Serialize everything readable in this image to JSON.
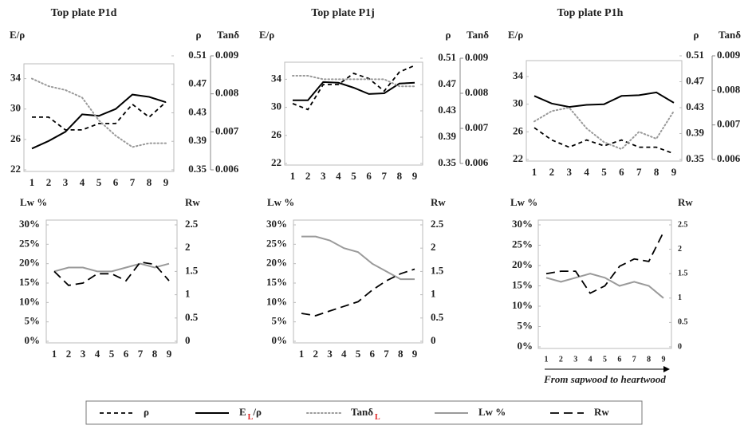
{
  "chart_data": [
    {
      "type": "line",
      "title": "Top plate P1d",
      "categories": [
        "1",
        "2",
        "3",
        "4",
        "5",
        "6",
        "7",
        "8",
        "9"
      ],
      "ylabel": "E/ρ",
      "ylim": [
        22,
        37
      ],
      "yticks": [
        22,
        26,
        30,
        34
      ],
      "y2label": "ρ",
      "y2lim": [
        0.35,
        0.51
      ],
      "y2ticks": [
        0.35,
        0.39,
        0.43,
        0.47,
        0.51
      ],
      "y3label": "Tanδ",
      "y3lim": [
        0.006,
        0.009
      ],
      "y3ticks": [
        0.006,
        0.007,
        0.008,
        0.009
      ],
      "series": [
        {
          "axis": "y2",
          "style": "dashed",
          "color": "#000000",
          "values": [
            0.424,
            0.424,
            0.406,
            0.406,
            0.415,
            0.415,
            0.442,
            0.424,
            0.445
          ]
        },
        {
          "axis": "y",
          "style": "solid",
          "color": "#000000",
          "values": [
            24.8,
            25.8,
            27,
            29.3,
            29.1,
            30,
            31.9,
            31.6,
            30.9
          ]
        },
        {
          "axis": "y3",
          "style": "dotted",
          "color": "#9a9a9a",
          "values": [
            0.0084,
            0.0082,
            0.0081,
            0.0079,
            0.0073,
            0.0069,
            0.0066,
            0.0067,
            0.0067
          ]
        }
      ]
    },
    {
      "type": "line",
      "title": "Top plate P1j",
      "categories": [
        "1",
        "2",
        "3",
        "4",
        "5",
        "6",
        "7",
        "8",
        "9"
      ],
      "ylabel": "E/ρ",
      "ylim": [
        22,
        37
      ],
      "yticks": [
        22,
        26,
        30,
        34
      ],
      "y2label": "ρ",
      "y2lim": [
        0.35,
        0.51
      ],
      "y2ticks": [
        0.35,
        0.39,
        0.43,
        0.47,
        0.51
      ],
      "y3label": "Tanδ",
      "y3lim": [
        0.006,
        0.009
      ],
      "y3ticks": [
        0.006,
        0.007,
        0.008,
        0.009
      ],
      "series": [
        {
          "axis": "y2",
          "style": "dashed",
          "color": "#000000",
          "values": [
            0.441,
            0.432,
            0.47,
            0.47,
            0.487,
            0.479,
            0.46,
            0.489,
            0.499
          ]
        },
        {
          "axis": "y",
          "style": "solid",
          "color": "#000000",
          "values": [
            31,
            31,
            33.6,
            33.5,
            32.8,
            31.9,
            32,
            33.4,
            33.5
          ]
        },
        {
          "axis": "y3",
          "style": "dotted",
          "color": "#9a9a9a",
          "values": [
            0.0085,
            0.0085,
            0.0084,
            0.0084,
            0.0084,
            0.0084,
            0.0084,
            0.0082,
            0.0082
          ]
        }
      ]
    },
    {
      "type": "line",
      "title": "Top plate P1h",
      "categories": [
        "1",
        "2",
        "3",
        "4",
        "5",
        "6",
        "7",
        "8",
        "9"
      ],
      "ylabel": "E/ρ",
      "ylim": [
        22,
        37
      ],
      "yticks": [
        22,
        26,
        30,
        34
      ],
      "y2label": "ρ",
      "y2lim": [
        0.35,
        0.51
      ],
      "y2ticks": [
        0.35,
        0.39,
        0.43,
        0.47,
        0.51
      ],
      "y3label": "Tanδ",
      "y3lim": [
        0.006,
        0.009
      ],
      "y3ticks": [
        0.006,
        0.007,
        0.008,
        0.009
      ],
      "series": [
        {
          "axis": "y2",
          "style": "dashed",
          "color": "#000000",
          "values": [
            0.399,
            0.38,
            0.369,
            0.38,
            0.371,
            0.38,
            0.369,
            0.369,
            0.359
          ]
        },
        {
          "axis": "y",
          "style": "solid",
          "color": "#000000",
          "values": [
            31.2,
            30.1,
            29.6,
            29.9,
            30,
            31.2,
            31.3,
            31.7,
            30.2
          ]
        },
        {
          "axis": "y3",
          "style": "dotted",
          "color": "#9a9a9a",
          "values": [
            0.0071,
            0.0074,
            0.0075,
            0.0069,
            0.0065,
            0.0063,
            0.0068,
            0.0066,
            0.0074
          ]
        }
      ]
    },
    {
      "type": "line",
      "categories": [
        "1",
        "2",
        "3",
        "4",
        "5",
        "6",
        "7",
        "8",
        "9"
      ],
      "ylabel": "Lw %",
      "ylim": [
        0,
        30
      ],
      "yticks": [
        {
          "value": 0,
          "label": "0%"
        },
        {
          "value": 5,
          "label": "5%"
        },
        {
          "value": 10,
          "label": "10%"
        },
        {
          "value": 15,
          "label": "15%"
        },
        {
          "value": 20,
          "label": "20%"
        },
        {
          "value": 25,
          "label": "25%"
        },
        {
          "value": 30,
          "label": "30%"
        }
      ],
      "y2label": "Rw",
      "y2lim": [
        0,
        2.5
      ],
      "y2ticks": [
        0,
        0.5,
        1,
        1.5,
        2,
        2.5
      ],
      "series": [
        {
          "axis": "y",
          "style": "solid",
          "color": "#9a9a9a",
          "values": [
            18,
            19,
            19,
            18,
            18,
            19,
            20,
            19,
            20
          ]
        },
        {
          "axis": "y2",
          "style": "longdash",
          "color": "#000000",
          "values": [
            1.5,
            1.2,
            1.25,
            1.45,
            1.45,
            1.3,
            1.7,
            1.65,
            1.3
          ]
        }
      ]
    },
    {
      "type": "line",
      "categories": [
        "1",
        "2",
        "3",
        "4",
        "5",
        "6",
        "7",
        "8",
        "9"
      ],
      "ylabel": "Lw %",
      "ylim": [
        0,
        30
      ],
      "yticks": [
        {
          "value": 0,
          "label": "0%"
        },
        {
          "value": 5,
          "label": "5%"
        },
        {
          "value": 10,
          "label": "10%"
        },
        {
          "value": 15,
          "label": "15%"
        },
        {
          "value": 20,
          "label": "20%"
        },
        {
          "value": 25,
          "label": "25%"
        },
        {
          "value": 30,
          "label": "30%"
        }
      ],
      "y2label": "Rw",
      "y2lim": [
        0,
        2.5
      ],
      "y2ticks": [
        0,
        0.5,
        1,
        1.5,
        2,
        2.5
      ],
      "series": [
        {
          "axis": "y",
          "style": "solid",
          "color": "#9a9a9a",
          "values": [
            27,
            27,
            26,
            24,
            23,
            20,
            18,
            16,
            16
          ]
        },
        {
          "axis": "y2",
          "style": "longdash",
          "color": "#000000",
          "values": [
            0.6,
            0.55,
            0.65,
            0.75,
            0.85,
            1.1,
            1.3,
            1.45,
            1.55
          ]
        }
      ]
    },
    {
      "type": "line",
      "categories": [
        "1",
        "2",
        "3",
        "4",
        "5",
        "6",
        "7",
        "8",
        "9"
      ],
      "ylabel": "Lw %",
      "ylim": [
        0,
        30
      ],
      "yticks": [
        {
          "value": 0,
          "label": "0%"
        },
        {
          "value": 5,
          "label": "5%"
        },
        {
          "value": 10,
          "label": "10%"
        },
        {
          "value": 15,
          "label": "15%"
        },
        {
          "value": 20,
          "label": "20%"
        },
        {
          "value": 25,
          "label": "25%"
        },
        {
          "value": 30,
          "label": "30%"
        }
      ],
      "y2label": "Rw",
      "y2lim": [
        0,
        2.5
      ],
      "y2ticks": [
        0,
        0.5,
        1,
        1.5,
        2,
        2.5
      ],
      "annotation": "From sapwood to heartwood",
      "series": [
        {
          "axis": "y",
          "style": "solid",
          "color": "#9a9a9a",
          "values": [
            17,
            16,
            17,
            18,
            17,
            15,
            16,
            15,
            12
          ]
        },
        {
          "axis": "y2",
          "style": "longdash",
          "color": "#000000",
          "values": [
            1.5,
            1.55,
            1.55,
            1.1,
            1.25,
            1.65,
            1.8,
            1.75,
            2.35
          ]
        }
      ]
    }
  ],
  "legend": {
    "items": [
      {
        "style": "dashed",
        "color": "#000000",
        "parts": [
          {
            "text": "ρ"
          }
        ]
      },
      {
        "style": "solid",
        "color": "#000000",
        "parts": [
          {
            "text": "E"
          },
          {
            "text": "L",
            "sub": true,
            "color": "#e02020"
          },
          {
            "text": "/ρ"
          }
        ]
      },
      {
        "style": "dotted",
        "color": "#9a9a9a",
        "parts": [
          {
            "text": "Tanδ"
          },
          {
            "text": "L",
            "sub": true,
            "color": "#e02020"
          }
        ]
      },
      {
        "style": "solid",
        "color": "#9a9a9a",
        "parts": [
          {
            "text": "Lw %"
          }
        ]
      },
      {
        "style": "longdash",
        "color": "#000000",
        "parts": [
          {
            "text": "Rw"
          }
        ]
      }
    ]
  }
}
